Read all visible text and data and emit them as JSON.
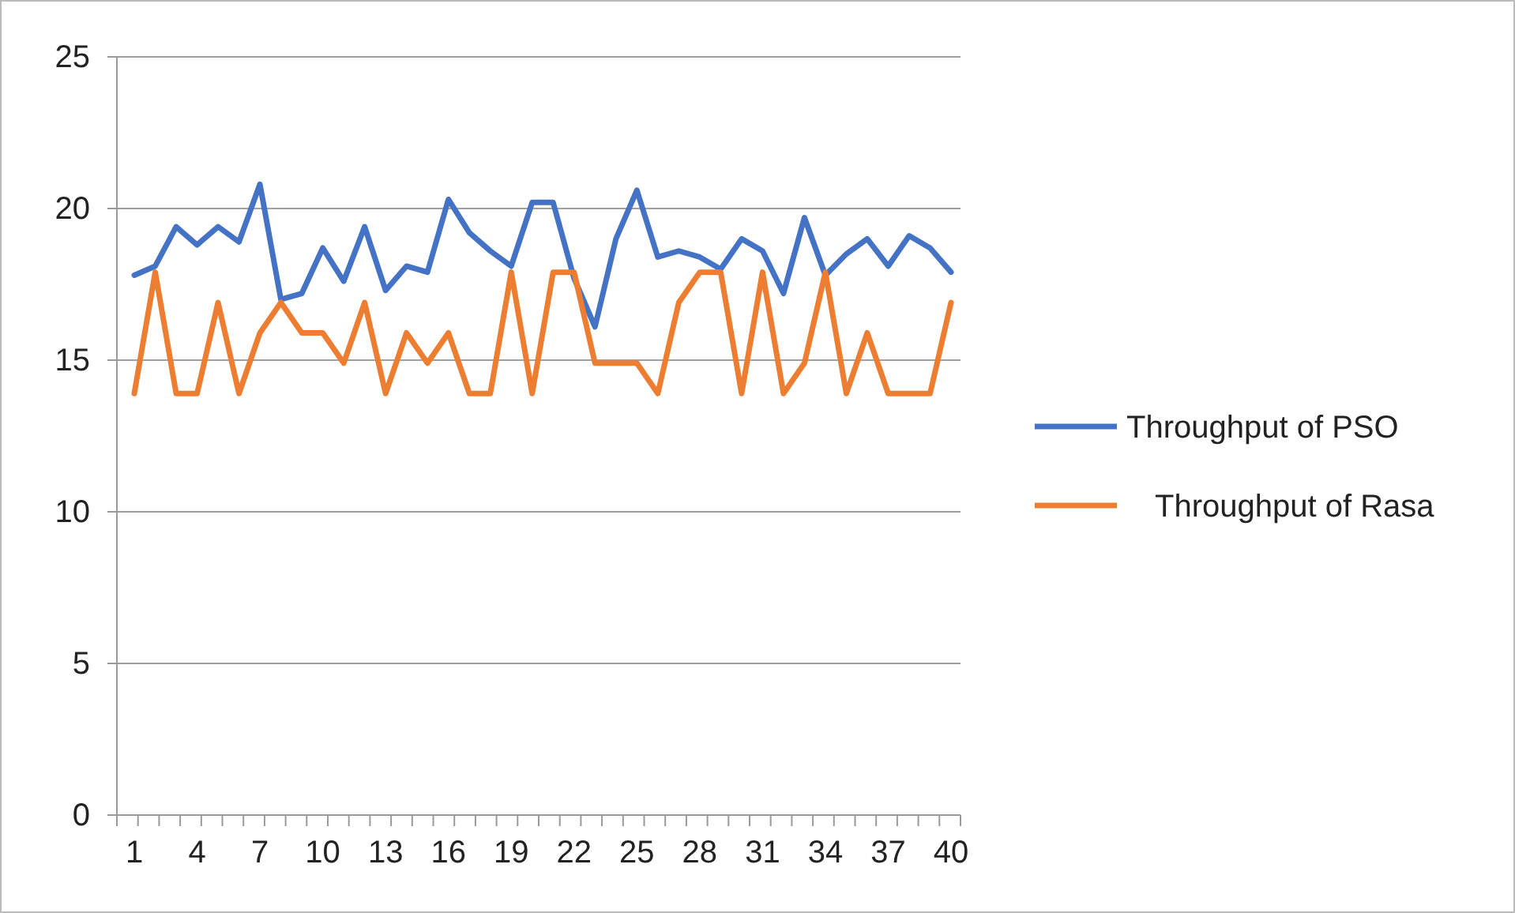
{
  "chart_data": {
    "type": "line",
    "categories": [
      "1",
      null,
      null,
      "4",
      null,
      null,
      "7",
      null,
      null,
      "10",
      null,
      null,
      "13",
      null,
      null,
      "16",
      null,
      null,
      "19",
      null,
      null,
      "22",
      null,
      null,
      "25",
      null,
      null,
      "28",
      null,
      null,
      "31",
      null,
      null,
      "34",
      null,
      null,
      "37",
      null,
      null,
      "40"
    ],
    "series": [
      {
        "name": "Throughput of PSO",
        "color": "#4472c4",
        "values": [
          17.8,
          18.1,
          19.4,
          18.8,
          19.4,
          18.9,
          20.8,
          17.0,
          17.2,
          18.7,
          17.6,
          19.4,
          17.3,
          18.1,
          17.9,
          20.3,
          19.2,
          18.6,
          18.1,
          20.2,
          20.2,
          17.7,
          16.1,
          19.0,
          20.6,
          18.4,
          18.6,
          18.4,
          18.0,
          19.0,
          18.6,
          17.2,
          19.7,
          17.8,
          18.5,
          19.0,
          18.1,
          19.1,
          18.7,
          17.9
        ]
      },
      {
        "name": "Throughput of Rasa",
        "color": "#ed7d31",
        "values": [
          13.9,
          17.9,
          13.9,
          13.9,
          16.9,
          13.9,
          15.9,
          16.9,
          15.9,
          15.9,
          14.9,
          16.9,
          13.9,
          15.9,
          14.9,
          15.9,
          13.9,
          13.9,
          17.9,
          13.9,
          17.9,
          17.9,
          14.9,
          14.9,
          14.9,
          13.9,
          16.9,
          17.9,
          17.9,
          13.9,
          17.9,
          13.9,
          14.9,
          17.9,
          13.9,
          15.9,
          13.9,
          13.9,
          13.9,
          16.9
        ]
      }
    ],
    "ylim": [
      0,
      25
    ],
    "yticks": [
      0,
      5,
      10,
      15,
      20,
      25
    ],
    "grid": "y",
    "legend": "right",
    "marker": "none",
    "line_style": "solid"
  }
}
